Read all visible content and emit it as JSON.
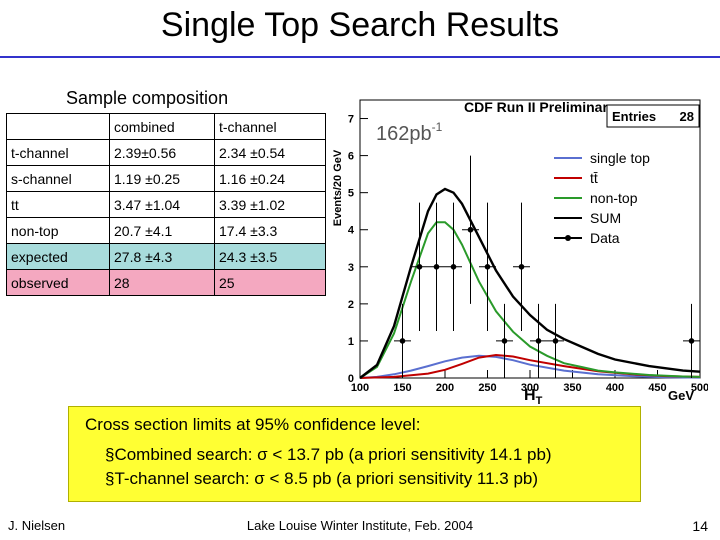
{
  "slide": {
    "title": "Single Top Search Results",
    "footer_left": "J. Nielsen",
    "footer_center": "Lake Louise Winter Institute, Feb. 2004",
    "page_number": "14"
  },
  "composition": {
    "title": "Sample composition",
    "headers": [
      "",
      "combined",
      "t-channel"
    ],
    "rows": [
      [
        "t-channel",
        "2.39±0.56",
        "2.34 ±0.54"
      ],
      [
        "s-channel",
        "1.19 ±0.25",
        "1.16 ±0.24"
      ],
      [
        "tt",
        "3.47 ±1.04",
        "3.39 ±1.02"
      ],
      [
        "non-top",
        "20.7 ±4.1",
        "17.4 ±3.3"
      ],
      [
        "expected",
        "27.8 ±4.3",
        "24.3 ±3.5"
      ],
      [
        "observed",
        "28",
        "25"
      ]
    ]
  },
  "cross_section": {
    "line1": "Cross section limits at 95% confidence level:",
    "line2": "§Combined search: σ < 13.7 pb (a priori sensitivity 14.1 pb)",
    "line3": "§T-channel search: σ < 8.5 pb (a priori sensitivity 11.3 pb)"
  },
  "chart_data": {
    "type": "line",
    "title": "CDF Run II Preliminary",
    "stats_label": "Entries",
    "stats_value": "28",
    "lumi_label": "162pb",
    "lumi_exp": "-1",
    "xlabel": "H",
    "xlabel_sub": "T",
    "xunit": "GeV",
    "ylabel": "Events/20 GeV",
    "xlim": [
      100,
      500
    ],
    "ylim": [
      0,
      7.5
    ],
    "x_ticks": [
      100,
      150,
      200,
      250,
      300,
      350,
      400,
      450,
      500
    ],
    "y_ticks": [
      0,
      1,
      2,
      3,
      4,
      5,
      6,
      7
    ],
    "legend_position": "top-right",
    "series": [
      {
        "name": "single top",
        "color": "#5a6fd0",
        "x": [
          100,
          120,
          140,
          160,
          180,
          200,
          220,
          240,
          260,
          280,
          300,
          340,
          380,
          420,
          460,
          500
        ],
        "y": [
          0,
          0.03,
          0.1,
          0.2,
          0.32,
          0.45,
          0.55,
          0.6,
          0.57,
          0.48,
          0.36,
          0.2,
          0.1,
          0.05,
          0.02,
          0.01
        ]
      },
      {
        "name": "tt",
        "label": "tt̄",
        "color": "#c00000",
        "x": [
          100,
          140,
          180,
          200,
          220,
          240,
          260,
          280,
          300,
          340,
          380,
          420,
          460,
          500
        ],
        "y": [
          0,
          0.03,
          0.12,
          0.22,
          0.38,
          0.55,
          0.62,
          0.58,
          0.48,
          0.32,
          0.18,
          0.1,
          0.05,
          0.03
        ]
      },
      {
        "name": "non-top",
        "color": "#2a9a2a",
        "x": [
          100,
          120,
          140,
          160,
          180,
          190,
          200,
          210,
          220,
          240,
          260,
          280,
          300,
          320,
          340,
          360,
          380,
          400,
          440,
          480,
          500
        ],
        "y": [
          0,
          0.3,
          1.2,
          2.6,
          3.9,
          4.2,
          4.2,
          4.0,
          3.6,
          2.6,
          1.8,
          1.25,
          0.85,
          0.6,
          0.4,
          0.3,
          0.2,
          0.15,
          0.08,
          0.04,
          0.03
        ]
      },
      {
        "name": "SUM",
        "color": "#000000",
        "x": [
          100,
          120,
          140,
          160,
          180,
          190,
          200,
          210,
          220,
          240,
          260,
          280,
          300,
          320,
          340,
          360,
          380,
          400,
          440,
          480,
          500
        ],
        "y": [
          0,
          0.35,
          1.4,
          3.0,
          4.5,
          4.95,
          5.1,
          5.0,
          4.7,
          3.8,
          2.9,
          2.2,
          1.7,
          1.3,
          1.05,
          0.85,
          0.65,
          0.5,
          0.32,
          0.2,
          0.17
        ]
      }
    ],
    "data_points": {
      "name": "Data",
      "x": [
        150,
        170,
        190,
        210,
        230,
        250,
        270,
        290,
        310,
        330,
        490
      ],
      "y": [
        1,
        3,
        3,
        3,
        4,
        3,
        1,
        3,
        1,
        1,
        1
      ]
    }
  }
}
